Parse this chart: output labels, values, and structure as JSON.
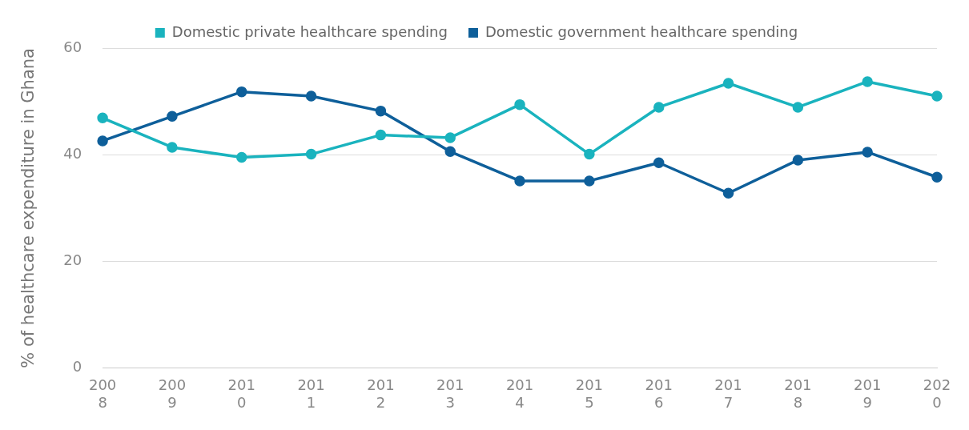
{
  "chart_data": {
    "type": "line",
    "ylabel": "% of healthcare expenditure in Ghana",
    "categories": [
      "2008",
      "2009",
      "2010",
      "2011",
      "2012",
      "2013",
      "2014",
      "2015",
      "2016",
      "2017",
      "2018",
      "2019",
      "2020"
    ],
    "series": [
      {
        "name": "Domestic private healthcare spending",
        "color": "#1ab3be",
        "values": [
          46.9,
          41.4,
          39.5,
          40.1,
          43.7,
          43.2,
          49.4,
          40.1,
          48.9,
          53.4,
          48.9,
          53.7,
          51.0
        ]
      },
      {
        "name": "Domestic government healthcare spending",
        "color": "#0e5f9a",
        "values": [
          42.6,
          47.2,
          51.8,
          51.0,
          48.2,
          40.6,
          35.1,
          35.1,
          38.5,
          32.8,
          39.0,
          40.5,
          35.8
        ]
      }
    ],
    "ylim": [
      0,
      60
    ],
    "yticks": [
      0,
      20,
      40,
      60
    ],
    "grid": "y",
    "legend": "top",
    "marker": "circle",
    "line_style": "solid"
  }
}
